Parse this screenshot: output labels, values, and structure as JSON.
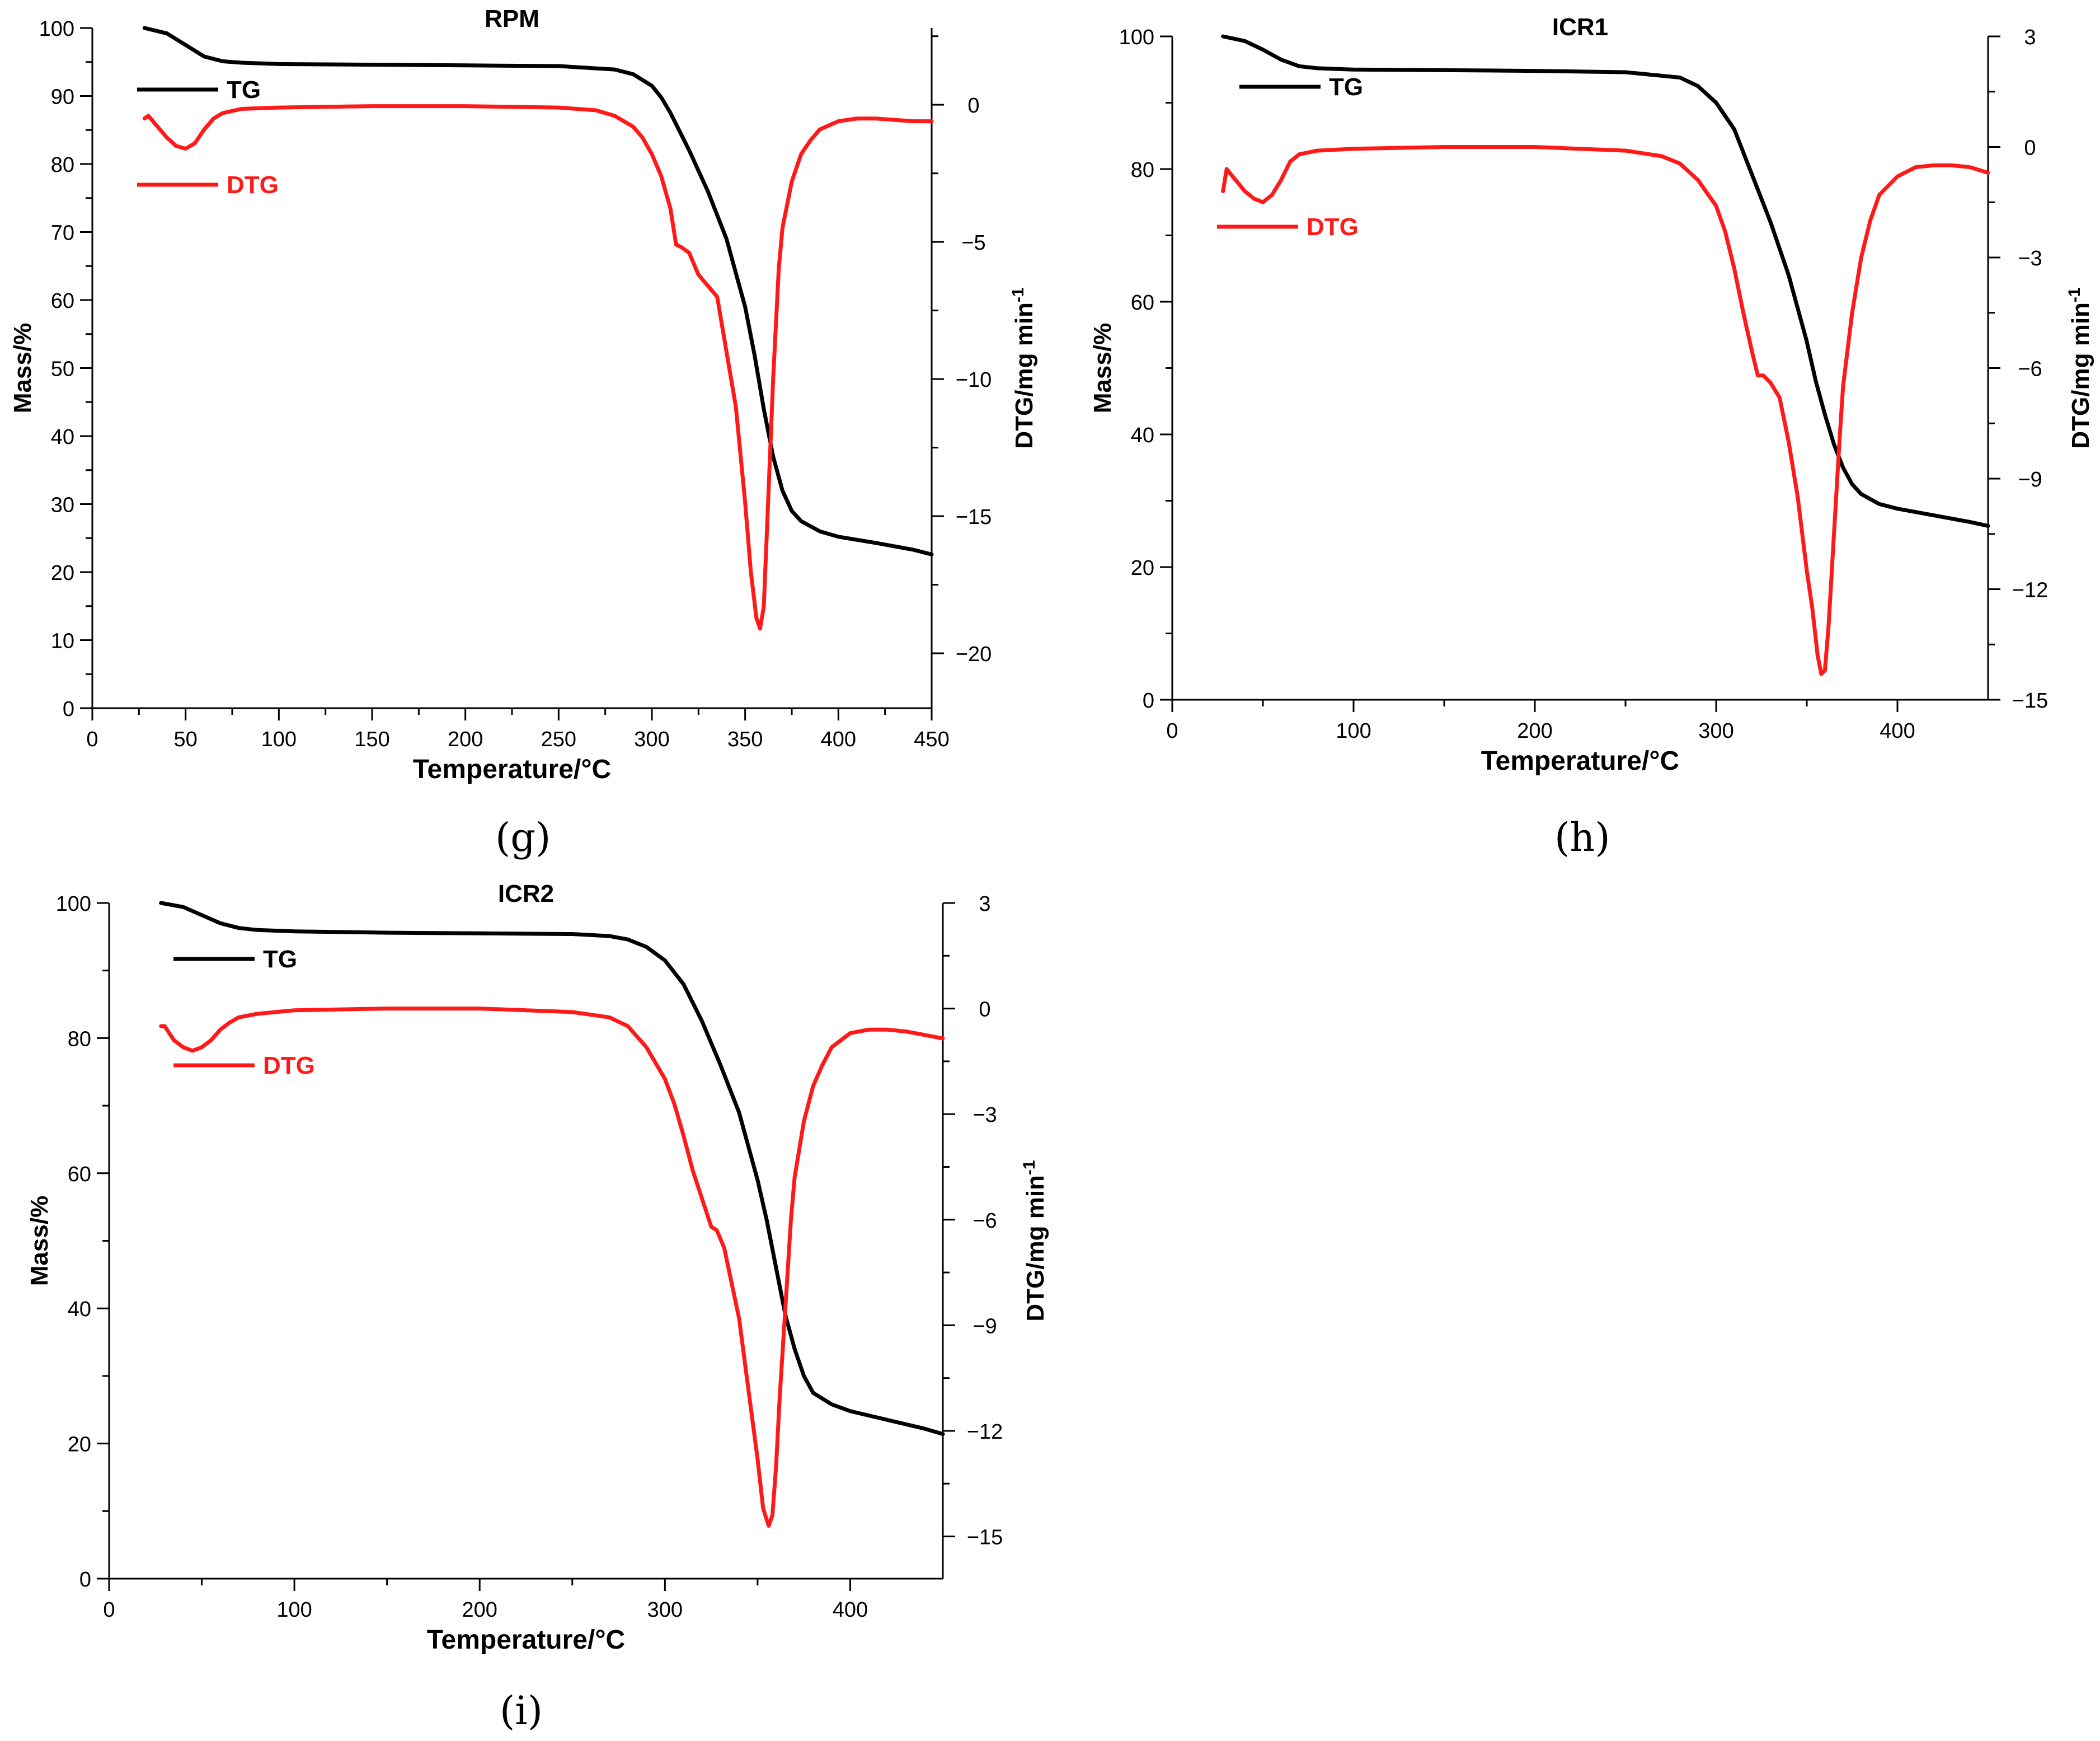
{
  "figure": {
    "captions": [
      "(g)",
      "(h)",
      "(i)"
    ]
  },
  "colors": {
    "tg": "#000000",
    "dtg": "#ff1a1a",
    "axis": "#000000"
  },
  "chart_data": [
    {
      "id": "g",
      "type": "line",
      "title": "RPM",
      "xlabel": "Temperature/°C",
      "ylabel_left": "Mass/%",
      "ylabel_right": "DTG/mg min",
      "ylabel_right_sup": "-1",
      "xlim": [
        0,
        450
      ],
      "xticks": [
        0,
        50,
        100,
        150,
        200,
        250,
        300,
        350,
        400,
        450
      ],
      "ylim_left": [
        0,
        100
      ],
      "yticks_left": [
        0,
        10,
        20,
        30,
        40,
        50,
        60,
        70,
        80,
        90,
        100
      ],
      "ylim_right": [
        -22,
        2.8
      ],
      "yticks_right": [
        -20,
        -15,
        -10,
        -5,
        0
      ],
      "legend": [
        "TG",
        "DTG"
      ],
      "series": [
        {
          "name": "TG",
          "axis": "left",
          "x": [
            28,
            40,
            50,
            60,
            70,
            80,
            100,
            150,
            200,
            250,
            280,
            290,
            300,
            305,
            310,
            320,
            330,
            340,
            350,
            355,
            360,
            365,
            370,
            375,
            380,
            390,
            400,
            420,
            440,
            450
          ],
          "y": [
            100,
            99.2,
            97.5,
            95.8,
            95.1,
            94.9,
            94.7,
            94.6,
            94.5,
            94.4,
            93.9,
            93.2,
            91.5,
            89.8,
            87.5,
            82,
            76,
            69,
            59,
            52,
            44,
            37,
            32,
            29,
            27.5,
            26,
            25.2,
            24.3,
            23.3,
            22.6
          ]
        },
        {
          "name": "DTG",
          "axis": "right",
          "x": [
            28,
            30,
            35,
            40,
            45,
            50,
            55,
            60,
            65,
            70,
            80,
            100,
            150,
            200,
            250,
            270,
            280,
            290,
            295,
            300,
            305,
            310,
            313,
            316,
            320,
            325,
            330,
            335,
            340,
            345,
            350,
            353,
            356,
            358,
            360,
            362,
            365,
            368,
            370,
            375,
            380,
            385,
            390,
            400,
            410,
            420,
            430,
            440,
            450
          ],
          "y": [
            -0.5,
            -0.4,
            -0.8,
            -1.2,
            -1.5,
            -1.6,
            -1.4,
            -0.9,
            -0.5,
            -0.3,
            -0.15,
            -0.1,
            -0.05,
            -0.05,
            -0.1,
            -0.2,
            -0.4,
            -0.8,
            -1.2,
            -1.8,
            -2.6,
            -3.8,
            -5.1,
            -5.2,
            -5.4,
            -6.2,
            -6.6,
            -7.0,
            -9.0,
            -11.0,
            -14.5,
            -17.0,
            -18.7,
            -19.1,
            -18.3,
            -15.0,
            -10.0,
            -6.0,
            -4.5,
            -2.8,
            -1.8,
            -1.3,
            -0.9,
            -0.6,
            -0.5,
            -0.5,
            -0.55,
            -0.6,
            -0.6
          ]
        }
      ]
    },
    {
      "id": "h",
      "type": "line",
      "title": "ICR1",
      "xlabel": "Temperature/°C",
      "ylabel_left": "Mass/%",
      "ylabel_right": "DTG/mg min",
      "ylabel_right_sup": "-1",
      "xlim": [
        0,
        450
      ],
      "xticks": [
        0,
        100,
        200,
        300,
        400
      ],
      "ylim_left": [
        0,
        100
      ],
      "yticks_left": [
        0,
        20,
        40,
        60,
        80,
        100
      ],
      "ylim_right": [
        -15,
        3
      ],
      "yticks_right": [
        -15,
        -12,
        -9,
        -6,
        -3,
        0,
        3
      ],
      "legend": [
        "TG",
        "DTG"
      ],
      "series": [
        {
          "name": "TG",
          "axis": "left",
          "x": [
            28,
            40,
            50,
            60,
            70,
            80,
            100,
            150,
            200,
            250,
            280,
            290,
            300,
            310,
            320,
            330,
            340,
            350,
            355,
            360,
            365,
            370,
            375,
            380,
            390,
            400,
            420,
            440,
            450
          ],
          "y": [
            100,
            99.3,
            98,
            96.5,
            95.5,
            95.2,
            95,
            94.9,
            94.8,
            94.6,
            93.8,
            92.5,
            90,
            86,
            79,
            72,
            64,
            54,
            48,
            43,
            38.5,
            35,
            32.5,
            31,
            29.5,
            28.8,
            27.8,
            26.8,
            26.2
          ]
        },
        {
          "name": "DTG",
          "axis": "right",
          "x": [
            28,
            30,
            35,
            40,
            45,
            50,
            55,
            60,
            65,
            70,
            80,
            100,
            150,
            200,
            250,
            270,
            280,
            290,
            300,
            305,
            310,
            315,
            320,
            323,
            326,
            330,
            335,
            340,
            345,
            350,
            353,
            356,
            358,
            360,
            362,
            365,
            368,
            370,
            375,
            380,
            385,
            390,
            400,
            410,
            420,
            430,
            440,
            450
          ],
          "y": [
            -1.2,
            -0.6,
            -0.9,
            -1.2,
            -1.4,
            -1.5,
            -1.3,
            -0.9,
            -0.4,
            -0.2,
            -0.1,
            -0.05,
            0,
            0,
            -0.1,
            -0.25,
            -0.45,
            -0.9,
            -1.6,
            -2.3,
            -3.3,
            -4.5,
            -5.6,
            -6.2,
            -6.2,
            -6.4,
            -6.8,
            -8.0,
            -9.5,
            -11.5,
            -12.5,
            -13.8,
            -14.3,
            -14.2,
            -13.0,
            -10.5,
            -8.0,
            -6.5,
            -4.5,
            -3.0,
            -2.0,
            -1.3,
            -0.8,
            -0.55,
            -0.5,
            -0.5,
            -0.55,
            -0.7
          ]
        }
      ]
    },
    {
      "id": "i",
      "type": "line",
      "title": "ICR2",
      "xlabel": "Temperature/°C",
      "ylabel_left": "Mass/%",
      "ylabel_right": "DTG/mg min",
      "ylabel_right_sup": "-1",
      "xlim": [
        0,
        450
      ],
      "xticks": [
        0,
        100,
        200,
        300,
        400
      ],
      "ylim_left": [
        0,
        100
      ],
      "yticks_left": [
        0,
        20,
        40,
        60,
        80,
        100
      ],
      "ylim_right": [
        -16.2,
        3
      ],
      "yticks_right": [
        -15,
        -12,
        -9,
        -6,
        -3,
        0,
        3
      ],
      "legend": [
        "TG",
        "DTG"
      ],
      "series": [
        {
          "name": "TG",
          "axis": "left",
          "x": [
            28,
            40,
            50,
            60,
            70,
            80,
            100,
            150,
            200,
            250,
            270,
            280,
            290,
            300,
            310,
            320,
            330,
            340,
            350,
            355,
            360,
            365,
            370,
            375,
            380,
            390,
            400,
            420,
            440,
            450
          ],
          "y": [
            100,
            99.4,
            98.2,
            97,
            96.3,
            96,
            95.8,
            95.6,
            95.5,
            95.4,
            95.1,
            94.6,
            93.5,
            91.5,
            88,
            82.5,
            76,
            69,
            59,
            53,
            46,
            39,
            34,
            30,
            27.5,
            25.8,
            24.8,
            23.5,
            22.2,
            21.4
          ]
        },
        {
          "name": "DTG",
          "axis": "right",
          "x": [
            28,
            30,
            35,
            40,
            45,
            50,
            55,
            60,
            65,
            70,
            80,
            100,
            150,
            200,
            250,
            270,
            280,
            290,
            300,
            305,
            310,
            315,
            320,
            325,
            328,
            332,
            336,
            340,
            345,
            350,
            353,
            356,
            358,
            360,
            362,
            365,
            368,
            370,
            375,
            380,
            385,
            390,
            400,
            410,
            420,
            430,
            440,
            450
          ],
          "y": [
            -0.5,
            -0.5,
            -0.9,
            -1.1,
            -1.2,
            -1.1,
            -0.9,
            -0.6,
            -0.4,
            -0.25,
            -0.15,
            -0.05,
            0,
            0,
            -0.1,
            -0.25,
            -0.5,
            -1.1,
            -2.0,
            -2.7,
            -3.6,
            -4.6,
            -5.4,
            -6.2,
            -6.3,
            -6.8,
            -7.8,
            -8.8,
            -10.8,
            -12.8,
            -14.2,
            -14.7,
            -14.4,
            -13.0,
            -11.0,
            -8.5,
            -6.0,
            -4.8,
            -3.2,
            -2.2,
            -1.6,
            -1.1,
            -0.7,
            -0.6,
            -0.6,
            -0.65,
            -0.75,
            -0.85
          ]
        }
      ]
    }
  ]
}
